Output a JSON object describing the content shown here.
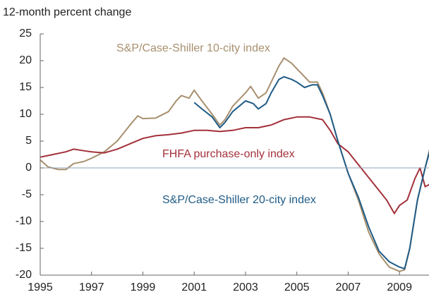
{
  "chart_data": {
    "type": "line",
    "ylabel": "12-month percent change",
    "xlim": [
      1995,
      2010.15
    ],
    "ylim": [
      -20,
      25
    ],
    "xticks": [
      1995,
      1997,
      1999,
      2001,
      2003,
      2005,
      2007,
      2009
    ],
    "yticks": [
      -20,
      -15,
      -10,
      -5,
      0,
      5,
      10,
      15,
      20,
      25
    ],
    "series": [
      {
        "name": "S&P/Case-Shiller 10-city index",
        "color": "#a8906f",
        "x": [
          1995.0,
          1995.3,
          1995.7,
          1996.0,
          1996.3,
          1996.7,
          1997.0,
          1997.5,
          1998.0,
          1998.5,
          1998.8,
          1999.0,
          1999.5,
          2000.0,
          2000.3,
          2000.5,
          2000.8,
          2001.0,
          2001.3,
          2001.7,
          2002.0,
          2002.2,
          2002.5,
          2003.0,
          2003.2,
          2003.5,
          2003.8,
          2004.0,
          2004.3,
          2004.5,
          2004.8,
          2005.0,
          2005.3,
          2005.5,
          2005.8,
          2006.0,
          2006.3,
          2006.6,
          2007.0,
          2007.4,
          2007.8,
          2008.2,
          2008.6,
          2009.0,
          2009.2,
          2009.4,
          2009.7,
          2010.0,
          2010.2
        ],
        "values": [
          1.5,
          0.2,
          -0.3,
          -0.3,
          0.8,
          1.2,
          1.8,
          3,
          5,
          8,
          9.7,
          9.2,
          9.3,
          10.5,
          12.5,
          13.5,
          13,
          14.5,
          12.5,
          10,
          8,
          9,
          11.5,
          14,
          15.2,
          13,
          14,
          16,
          19,
          20.5,
          19.5,
          18.5,
          17,
          16,
          16,
          14,
          10,
          5,
          -1,
          -6,
          -12,
          -16,
          -18.5,
          -19.3,
          -19,
          -15,
          -6,
          0,
          4
        ]
      },
      {
        "name": "FHFA purchase-only index",
        "color": "#a3313b",
        "x": [
          1995.0,
          1995.5,
          1996.0,
          1996.3,
          1996.7,
          1997.0,
          1997.5,
          1998.0,
          1998.5,
          1999.0,
          1999.5,
          2000.0,
          2000.5,
          2001.0,
          2001.5,
          2002.0,
          2002.5,
          2003.0,
          2003.5,
          2004.0,
          2004.5,
          2005.0,
          2005.5,
          2006.0,
          2006.3,
          2006.6,
          2007.0,
          2007.5,
          2008.0,
          2008.5,
          2008.8,
          2009.0,
          2009.3,
          2009.6,
          2009.8,
          2010.0,
          2010.2
        ],
        "values": [
          2,
          2.5,
          3,
          3.5,
          3.2,
          3,
          2.8,
          3.5,
          4.5,
          5.5,
          6,
          6.2,
          6.5,
          7,
          7,
          6.8,
          7,
          7.5,
          7.5,
          8,
          9,
          9.5,
          9.5,
          9,
          7,
          4.5,
          3,
          0,
          -3,
          -6,
          -8.5,
          -7,
          -6,
          -2,
          0,
          -3.5,
          -3
        ]
      },
      {
        "name": "S&P/Case-Shiller 20-city index",
        "color": "#1f5b86",
        "x": [
          2001.0,
          2001.3,
          2001.7,
          2002.0,
          2002.2,
          2002.5,
          2003.0,
          2003.3,
          2003.5,
          2003.8,
          2004.0,
          2004.3,
          2004.5,
          2004.8,
          2005.0,
          2005.3,
          2005.6,
          2005.8,
          2006.0,
          2006.3,
          2006.6,
          2007.0,
          2007.4,
          2007.8,
          2008.2,
          2008.6,
          2009.0,
          2009.2,
          2009.4,
          2009.7,
          2010.0,
          2010.2
        ],
        "values": [
          12.2,
          11,
          9.5,
          7.5,
          8.5,
          10.5,
          12.5,
          12,
          11,
          12,
          14,
          16.5,
          17,
          16.5,
          16,
          15,
          15.5,
          15.5,
          13.5,
          10,
          5,
          -1,
          -5.5,
          -11,
          -15.5,
          -17.5,
          -18.5,
          -18.8,
          -15,
          -6,
          0,
          3.5
        ]
      }
    ]
  }
}
